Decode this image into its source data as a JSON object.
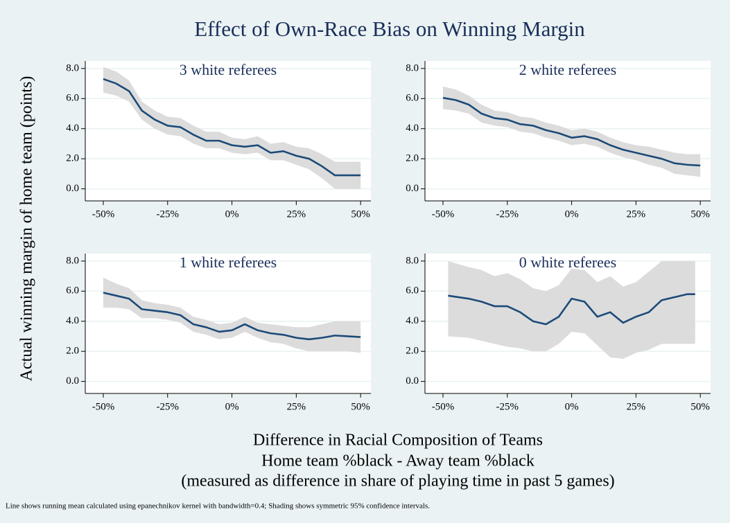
{
  "title": "Effect of Own-Race Bias on Winning Margin",
  "y_label": "Actual winning margin of home team (points)",
  "x_label": [
    "Difference in Racial Composition of Teams",
    "Home team %black - Away team %black",
    "(measured as difference in share of playing time in past 5 games)"
  ],
  "note": "Line shows running mean calculated using epanechnikov kernel with bandwidth=0.4; Shading shows symmetric 95% confidence intervals.",
  "chart_data": [
    {
      "type": "line",
      "title": "3 white referees",
      "color": "#1b4a78",
      "band_color": "#dcdcdc",
      "x": [
        -50,
        -45,
        -40,
        -35,
        -30,
        -25,
        -20,
        -15,
        -10,
        -5,
        0,
        5,
        10,
        15,
        20,
        25,
        30,
        35,
        40,
        45,
        50
      ],
      "values": [
        7.3,
        7.0,
        6.5,
        5.2,
        4.6,
        4.2,
        4.1,
        3.6,
        3.2,
        3.2,
        2.9,
        2.8,
        2.9,
        2.4,
        2.5,
        2.2,
        2.0,
        1.5,
        0.9,
        0.9,
        0.9
      ],
      "ci_lower": [
        6.4,
        6.2,
        5.8,
        4.6,
        4.0,
        3.6,
        3.5,
        3.0,
        2.7,
        2.7,
        2.4,
        2.3,
        2.4,
        1.9,
        1.9,
        1.6,
        1.3,
        0.7,
        0.0,
        0.0,
        0.0
      ],
      "ci_upper": [
        8.1,
        7.8,
        7.2,
        5.8,
        5.2,
        4.8,
        4.7,
        4.2,
        3.8,
        3.8,
        3.4,
        3.3,
        3.5,
        3.0,
        3.1,
        2.8,
        2.7,
        2.3,
        1.8,
        1.8,
        1.8
      ],
      "xlim": [
        -57,
        54
      ],
      "ylim": [
        -0.8,
        8.5
      ],
      "xticks": [
        {
          "value": -50,
          "label": "-50%"
        },
        {
          "value": -25,
          "label": "-25%"
        },
        {
          "value": 0,
          "label": "0%"
        },
        {
          "value": 25,
          "label": "25%"
        },
        {
          "value": 50,
          "label": "50%"
        }
      ],
      "yticks": [
        {
          "value": 0,
          "label": "0.0"
        },
        {
          "value": 2,
          "label": "2.0"
        },
        {
          "value": 4,
          "label": "4.0"
        },
        {
          "value": 6,
          "label": "6.0"
        },
        {
          "value": 8,
          "label": "8.0"
        }
      ],
      "grid": true
    },
    {
      "type": "line",
      "title": "2 white referees",
      "color": "#1b4a78",
      "band_color": "#dcdcdc",
      "x": [
        -50,
        -45,
        -40,
        -35,
        -30,
        -25,
        -20,
        -15,
        -10,
        -5,
        0,
        5,
        10,
        15,
        20,
        25,
        30,
        35,
        40,
        45,
        50
      ],
      "values": [
        6.05,
        5.9,
        5.6,
        5.0,
        4.7,
        4.6,
        4.3,
        4.2,
        3.9,
        3.7,
        3.4,
        3.5,
        3.3,
        2.9,
        2.6,
        2.4,
        2.2,
        2.0,
        1.7,
        1.6,
        1.55
      ],
      "ci_lower": [
        5.3,
        5.2,
        5.0,
        4.4,
        4.2,
        4.1,
        3.8,
        3.7,
        3.4,
        3.2,
        2.9,
        3.0,
        2.8,
        2.4,
        2.1,
        1.9,
        1.6,
        1.4,
        1.0,
        0.9,
        0.8
      ],
      "ci_upper": [
        6.8,
        6.6,
        6.2,
        5.6,
        5.2,
        5.1,
        4.8,
        4.7,
        4.4,
        4.2,
        3.9,
        4.0,
        3.8,
        3.4,
        3.1,
        2.9,
        2.8,
        2.6,
        2.4,
        2.3,
        2.3
      ],
      "xlim": [
        -57,
        54
      ],
      "ylim": [
        -0.8,
        8.5
      ],
      "xticks": [
        {
          "value": -50,
          "label": "-50%"
        },
        {
          "value": -25,
          "label": "-25%"
        },
        {
          "value": 0,
          "label": "0%"
        },
        {
          "value": 25,
          "label": "25%"
        },
        {
          "value": 50,
          "label": "50%"
        }
      ],
      "yticks": [
        {
          "value": 0,
          "label": "0.0"
        },
        {
          "value": 2,
          "label": "2.0"
        },
        {
          "value": 4,
          "label": "4.0"
        },
        {
          "value": 6,
          "label": "6.0"
        },
        {
          "value": 8,
          "label": "8.0"
        }
      ],
      "grid": true
    },
    {
      "type": "line",
      "title": "1 white referees",
      "color": "#1b4a78",
      "band_color": "#dcdcdc",
      "x": [
        -50,
        -45,
        -40,
        -35,
        -30,
        -25,
        -20,
        -15,
        -10,
        -5,
        0,
        5,
        10,
        15,
        20,
        25,
        30,
        35,
        40,
        45,
        50
      ],
      "values": [
        5.9,
        5.7,
        5.5,
        4.8,
        4.7,
        4.6,
        4.4,
        3.8,
        3.6,
        3.3,
        3.4,
        3.8,
        3.4,
        3.2,
        3.1,
        2.9,
        2.8,
        2.9,
        3.05,
        3.0,
        2.95
      ],
      "ci_lower": [
        4.9,
        4.9,
        4.8,
        4.2,
        4.2,
        4.1,
        3.9,
        3.3,
        3.1,
        2.8,
        2.9,
        3.3,
        2.9,
        2.6,
        2.5,
        2.2,
        2.0,
        2.0,
        2.0,
        2.0,
        1.9
      ],
      "ci_upper": [
        6.9,
        6.5,
        6.2,
        5.4,
        5.2,
        5.1,
        4.9,
        4.3,
        4.1,
        3.8,
        3.9,
        4.3,
        3.9,
        3.8,
        3.7,
        3.6,
        3.6,
        3.8,
        4.0,
        4.0,
        4.0
      ],
      "xlim": [
        -57,
        54
      ],
      "ylim": [
        -0.8,
        8.5
      ],
      "xticks": [
        {
          "value": -50,
          "label": "-50%"
        },
        {
          "value": -25,
          "label": "-25%"
        },
        {
          "value": 0,
          "label": "0%"
        },
        {
          "value": 25,
          "label": "25%"
        },
        {
          "value": 50,
          "label": "50%"
        }
      ],
      "yticks": [
        {
          "value": 0,
          "label": "0.0"
        },
        {
          "value": 2,
          "label": "2.0"
        },
        {
          "value": 4,
          "label": "4.0"
        },
        {
          "value": 6,
          "label": "6.0"
        },
        {
          "value": 8,
          "label": "8.0"
        }
      ],
      "grid": true
    },
    {
      "type": "line",
      "title": "0 white referees",
      "color": "#1b4a78",
      "band_color": "#dcdcdc",
      "x": [
        -48,
        -40,
        -35,
        -30,
        -25,
        -20,
        -15,
        -10,
        -5,
        0,
        5,
        10,
        15,
        20,
        25,
        30,
        35,
        40,
        45,
        48
      ],
      "values": [
        5.7,
        5.5,
        5.3,
        5.0,
        5.0,
        4.6,
        4.0,
        3.8,
        4.3,
        5.5,
        5.3,
        4.3,
        4.6,
        3.9,
        4.3,
        4.6,
        5.4,
        5.6,
        5.8,
        5.8
      ],
      "ci_lower": [
        3.0,
        2.9,
        2.7,
        2.5,
        2.3,
        2.2,
        2.0,
        2.0,
        2.5,
        3.3,
        3.2,
        2.4,
        1.6,
        1.5,
        1.9,
        2.1,
        2.5,
        2.5,
        2.5,
        2.5
      ],
      "ci_upper": [
        8.0,
        7.6,
        7.4,
        7.0,
        7.2,
        6.8,
        6.2,
        6.0,
        6.4,
        7.5,
        7.4,
        6.6,
        7.0,
        6.3,
        6.6,
        7.3,
        8.0,
        8.0,
        8.0,
        8.0
      ],
      "xlim": [
        -57,
        54
      ],
      "ylim": [
        -0.8,
        8.5
      ],
      "xticks": [
        {
          "value": -50,
          "label": "-50%"
        },
        {
          "value": -25,
          "label": "-25%"
        },
        {
          "value": 0,
          "label": "0%"
        },
        {
          "value": 25,
          "label": "25%"
        },
        {
          "value": 50,
          "label": "50%"
        }
      ],
      "yticks": [
        {
          "value": 0,
          "label": "0.0"
        },
        {
          "value": 2,
          "label": "2.0"
        },
        {
          "value": 4,
          "label": "4.0"
        },
        {
          "value": 6,
          "label": "6.0"
        },
        {
          "value": 8,
          "label": "8.0"
        }
      ],
      "grid": true
    }
  ]
}
